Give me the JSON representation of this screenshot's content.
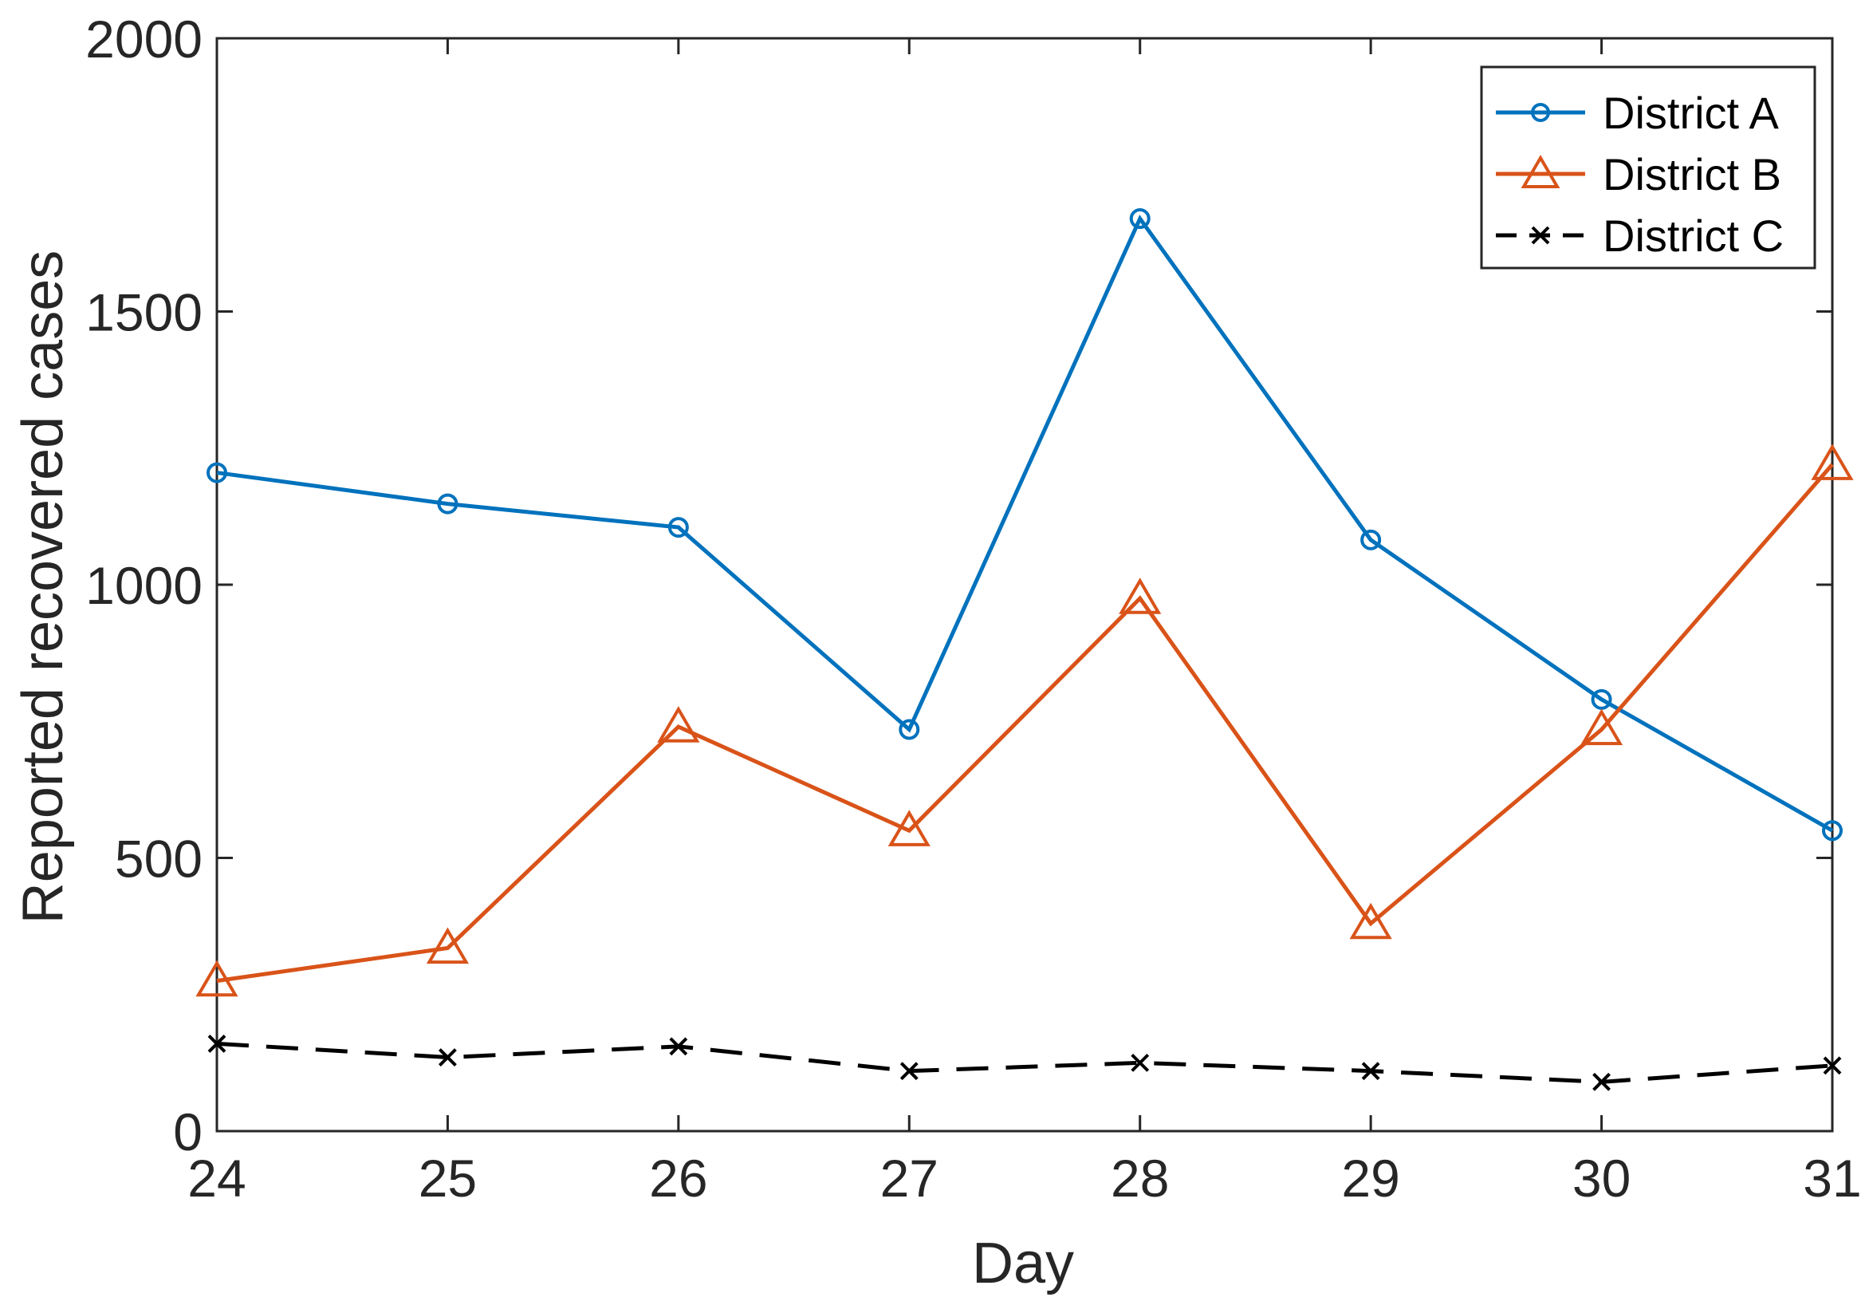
{
  "chart_data": {
    "type": "line",
    "title": "",
    "xlabel": "Day",
    "ylabel": "Reported recovered cases",
    "x": [
      24,
      25,
      26,
      27,
      28,
      29,
      30,
      31
    ],
    "x_tick_labels": [
      "24",
      "25",
      "26",
      "27",
      "28",
      "29",
      "30",
      "31"
    ],
    "xlim": [
      24,
      31
    ],
    "ylim": [
      0,
      2000
    ],
    "y_ticks": [
      0,
      500,
      1000,
      1500,
      2000
    ],
    "y_tick_labels": [
      "0",
      "500",
      "1000",
      "1500",
      "2000"
    ],
    "grid": false,
    "legend_position": "top-right",
    "series": [
      {
        "name": "District A",
        "values": [
          1205,
          1148,
          1105,
          735,
          1670,
          1082,
          790,
          550
        ],
        "color": "#0072BD",
        "marker": "circle",
        "line_style": "solid"
      },
      {
        "name": "District B",
        "values": [
          275,
          335,
          740,
          550,
          975,
          380,
          735,
          1220
        ],
        "color": "#D95319",
        "marker": "triangle",
        "line_style": "solid"
      },
      {
        "name": "District C",
        "values": [
          160,
          135,
          155,
          110,
          125,
          110,
          90,
          120
        ],
        "color": "#000000",
        "marker": "x",
        "line_style": "dashed"
      }
    ]
  }
}
